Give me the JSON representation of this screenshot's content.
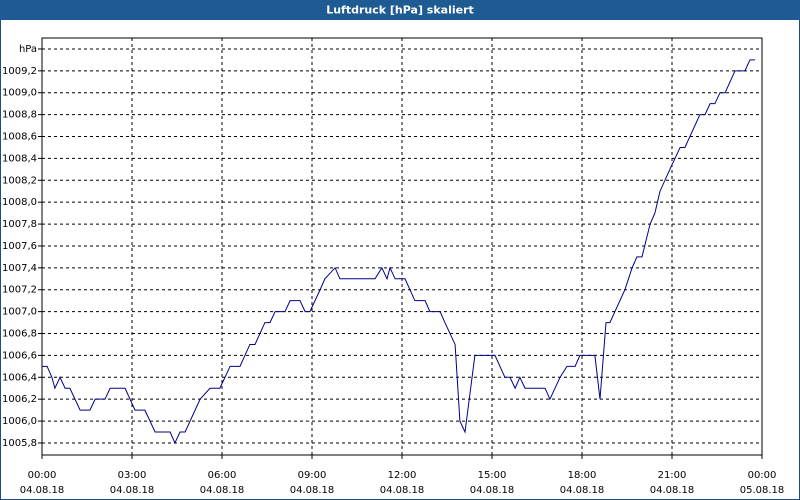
{
  "chart_data": {
    "type": "line",
    "title": "Luftdruck [hPa] skaliert",
    "x": [
      0,
      0.17,
      0.33,
      0.43,
      0.6,
      0.77,
      0.93,
      1.27,
      1.6,
      1.77,
      2.1,
      2.27,
      2.77,
      3.1,
      3.43,
      3.77,
      4.27,
      4.43,
      4.6,
      4.77,
      5.27,
      5.6,
      5.93,
      6.27,
      6.6,
      6.93,
      7.1,
      7.43,
      7.6,
      7.77,
      8.1,
      8.27,
      8.6,
      8.77,
      8.93,
      9.27,
      9.43,
      9.77,
      9.93,
      11.1,
      11.33,
      11.5,
      11.6,
      11.77,
      12.1,
      12.43,
      12.77,
      12.93,
      13.27,
      13.43,
      13.77,
      13.93,
      14.1,
      14.43,
      15.1,
      15.43,
      15.6,
      15.77,
      15.93,
      16.1,
      16.77,
      16.93,
      17.27,
      17.5,
      17.77,
      17.93,
      18.43,
      18.6,
      18.8,
      18.93,
      19.43,
      19.67,
      19.83,
      20,
      20.27,
      20.43,
      20.6,
      20.93,
      21.27,
      21.43,
      21.93,
      22.1,
      22.27,
      22.43,
      22.6,
      22.77,
      23.1,
      23.43,
      23.6,
      23.77
    ],
    "series": [
      {
        "color": "#00008b",
        "values": [
          1006.5,
          1006.5,
          1006.4,
          1006.3,
          1006.4,
          1006.3,
          1006.3,
          1006.1,
          1006.1,
          1006.2,
          1006.2,
          1006.3,
          1006.3,
          1006.1,
          1006.1,
          1005.9,
          1005.9,
          1005.8,
          1005.9,
          1005.9,
          1006.2,
          1006.3,
          1006.3,
          1006.5,
          1006.5,
          1006.7,
          1006.7,
          1006.9,
          1006.9,
          1007.0,
          1007.0,
          1007.1,
          1007.1,
          1007.0,
          1007.0,
          1007.2,
          1007.3,
          1007.4,
          1007.3,
          1007.3,
          1007.4,
          1007.3,
          1007.4,
          1007.3,
          1007.3,
          1007.1,
          1007.1,
          1007.0,
          1007.0,
          1006.9,
          1006.7,
          1006.0,
          1005.9,
          1006.6,
          1006.6,
          1006.4,
          1006.4,
          1006.3,
          1006.4,
          1006.3,
          1006.3,
          1006.2,
          1006.4,
          1006.5,
          1006.5,
          1006.6,
          1006.6,
          1006.2,
          1006.9,
          1006.9,
          1007.2,
          1007.4,
          1007.5,
          1007.5,
          1007.8,
          1007.9,
          1008.1,
          1008.3,
          1008.5,
          1008.5,
          1008.8,
          1008.8,
          1008.9,
          1008.9,
          1009.0,
          1009.0,
          1009.2,
          1009.2,
          1009.3,
          1009.3
        ]
      }
    ],
    "xlim": [
      0,
      24
    ],
    "xticks": [
      {
        "value": 0,
        "label": "00:00",
        "date": "04.08.18"
      },
      {
        "value": 3,
        "label": "03:00",
        "date": "04.08.18"
      },
      {
        "value": 6,
        "label": "06:00",
        "date": "04.08.18"
      },
      {
        "value": 9,
        "label": "09:00",
        "date": "04.08.18"
      },
      {
        "value": 12,
        "label": "12:00",
        "date": "04.08.18"
      },
      {
        "value": 15,
        "label": "15:00",
        "date": "04.08.18"
      },
      {
        "value": 18,
        "label": "18:00",
        "date": "04.08.18"
      },
      {
        "value": 21,
        "label": "21:00",
        "date": "04.08.18"
      },
      {
        "value": 24,
        "label": "00:00",
        "date": "05.08.18"
      }
    ],
    "ylim": [
      1005.69,
      1009.5
    ],
    "yticks": [
      {
        "value": 1005.8,
        "label": "1005,8"
      },
      {
        "value": 1006.0,
        "label": "1006,0"
      },
      {
        "value": 1006.2,
        "label": "1006,2"
      },
      {
        "value": 1006.4,
        "label": "1006,4"
      },
      {
        "value": 1006.6,
        "label": "1006,6"
      },
      {
        "value": 1006.8,
        "label": "1006,8"
      },
      {
        "value": 1007.0,
        "label": "1007,0"
      },
      {
        "value": 1007.2,
        "label": "1007,2"
      },
      {
        "value": 1007.4,
        "label": "1007,4"
      },
      {
        "value": 1007.6,
        "label": "1007,6"
      },
      {
        "value": 1007.8,
        "label": "1007,8"
      },
      {
        "value": 1008.0,
        "label": "1008,0"
      },
      {
        "value": 1008.2,
        "label": "1008,2"
      },
      {
        "value": 1008.4,
        "label": "1008,4"
      },
      {
        "value": 1008.6,
        "label": "1008,6"
      },
      {
        "value": 1008.8,
        "label": "1008,8"
      },
      {
        "value": 1009.0,
        "label": "1009,0"
      },
      {
        "value": 1009.2,
        "label": "1009,2"
      },
      {
        "value": 1009.4,
        "label": "hPa"
      }
    ],
    "grid": true
  }
}
